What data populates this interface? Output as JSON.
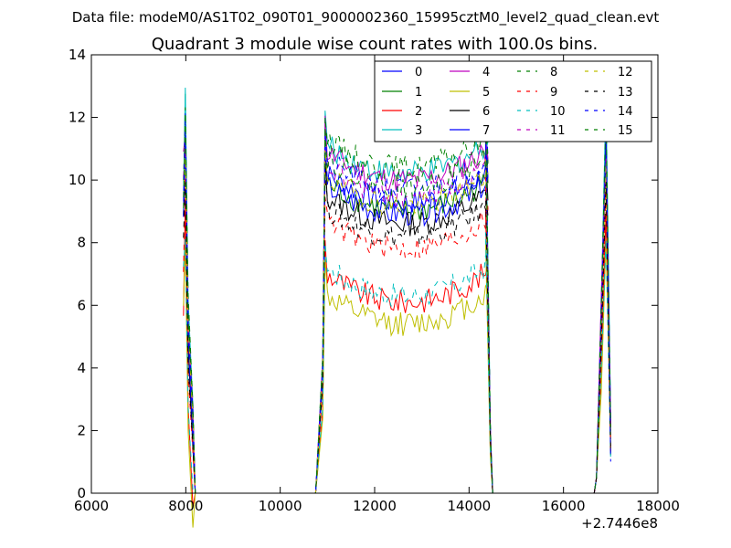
{
  "chart_data": {
    "type": "line",
    "header": "Data file: modeM0/AS1T02_090T01_9000002360_15995cztM0_level2_quad_clean.evt",
    "title": "Quadrant 3 module wise count rates with 100.0s bins.",
    "xlabel": "",
    "ylabel": "",
    "x_offset_label": "+2.7446e8",
    "xlim": [
      6000,
      18000
    ],
    "ylim": [
      0,
      14
    ],
    "x_ticks": [
      "6000",
      "8000",
      "10000",
      "12000",
      "14000",
      "16000",
      "18000"
    ],
    "y_ticks": [
      "0",
      "2",
      "4",
      "6",
      "8",
      "10",
      "12",
      "14"
    ],
    "legend_position": "top-right",
    "legend_columns": 4,
    "series": [
      {
        "name": "0",
        "color": "#0000ff",
        "dash": "solid",
        "level": 9.9,
        "peak": 11.9
      },
      {
        "name": "1",
        "color": "#008000",
        "dash": "solid",
        "level": 9.6,
        "peak": 12.6
      },
      {
        "name": "2",
        "color": "#ff0000",
        "dash": "solid",
        "level": 6.7,
        "peak": 9.4
      },
      {
        "name": "3",
        "color": "#00bfbf",
        "dash": "solid",
        "level": 10.8,
        "peak": 13.0
      },
      {
        "name": "4",
        "color": "#bf00bf",
        "dash": "solid",
        "level": 10.6,
        "peak": 11.6
      },
      {
        "name": "5",
        "color": "#bfbf00",
        "dash": "solid",
        "level": 6.0,
        "peak": 8.3
      },
      {
        "name": "6",
        "color": "#000000",
        "dash": "solid",
        "level": 9.2,
        "peak": 11.2
      },
      {
        "name": "7",
        "color": "#0000ff",
        "dash": "solid",
        "level": 9.5,
        "peak": 11.4
      },
      {
        "name": "8",
        "color": "#008000",
        "dash": "dashed",
        "level": 11.0,
        "peak": 12.1
      },
      {
        "name": "9",
        "color": "#ff0000",
        "dash": "dashed",
        "level": 8.4,
        "peak": 10.2
      },
      {
        "name": "10",
        "color": "#00bfbf",
        "dash": "dashed",
        "level": 6.9,
        "peak": 8.4
      },
      {
        "name": "11",
        "color": "#bf00bf",
        "dash": "dashed",
        "level": 10.1,
        "peak": 10.9
      },
      {
        "name": "12",
        "color": "#bfbf00",
        "dash": "dashed",
        "level": 9.8,
        "peak": 10.7
      },
      {
        "name": "13",
        "color": "#000000",
        "dash": "dashed",
        "level": 8.8,
        "peak": 10.0
      },
      {
        "name": "14",
        "color": "#0000ff",
        "dash": "dashed",
        "level": 10.3,
        "peak": 12.3
      },
      {
        "name": "15",
        "color": "#008000",
        "dash": "dashed",
        "level": 10.4,
        "peak": 12.6
      }
    ],
    "segments": [
      {
        "x_start": 7950,
        "x_end": 8150
      },
      {
        "x_start": 10900,
        "x_end": 14400
      },
      {
        "x_start": 16700,
        "x_end": 17000
      }
    ],
    "zero_gaps": [
      {
        "x_start": 8150,
        "x_end": 10850
      },
      {
        "x_start": 14450,
        "x_end": 16650
      }
    ]
  }
}
